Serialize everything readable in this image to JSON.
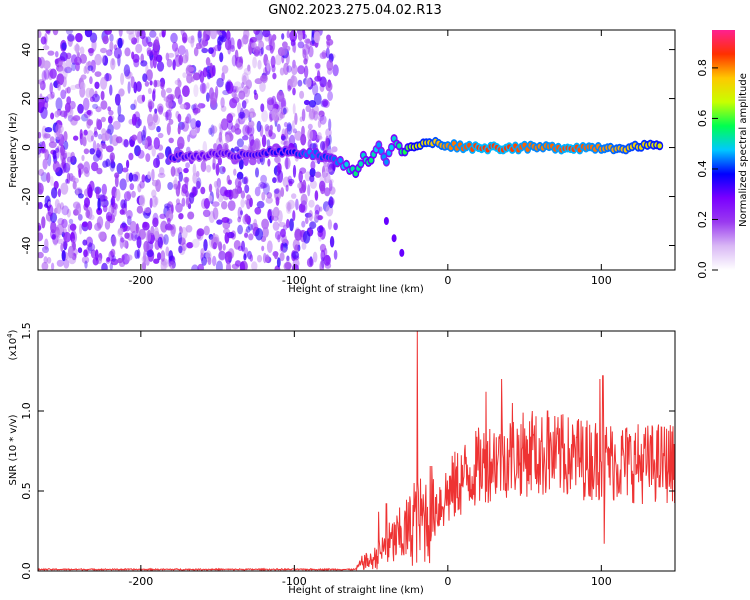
{
  "title": "GN02.2023.275.04.02.R13",
  "chart_data": [
    {
      "type": "heatmap",
      "xlabel": "Height of straight line (km)",
      "ylabel": "Frequency (Hz)",
      "xlim": [
        -267,
        148
      ],
      "ylim": [
        -50,
        48
      ],
      "xticks": [
        -200,
        -100,
        0,
        100
      ],
      "xtick_labels": [
        "-200",
        "-100",
        "0",
        "100"
      ],
      "yticks": [
        -40,
        -20,
        0,
        20,
        40
      ],
      "ytick_labels": [
        "-40",
        "-20",
        "0",
        "20",
        "40"
      ],
      "colorbar": {
        "label": "Normalized spectral amplitude",
        "range": [
          0,
          0.95
        ],
        "ticks": [
          0.0,
          0.2,
          0.4,
          0.6,
          0.8
        ],
        "tick_labels": [
          "0.0",
          "0.2",
          "0.4",
          "0.6",
          "0.8"
        ],
        "colors": [
          "#ffffff",
          "#d9b8f5",
          "#9a3af0",
          "#7a00ff",
          "#0000ff",
          "#00c8ff",
          "#00ff50",
          "#c8ff00",
          "#ffc800",
          "#ff3000",
          "#ff2090"
        ]
      },
      "noise_region": {
        "x_range": [
          -267,
          -73
        ],
        "amplitude": [
          0.1,
          0.35
        ]
      },
      "ridge": [
        {
          "x": -180,
          "y": -4,
          "z": 0.35
        },
        {
          "x": -160,
          "y": -3,
          "z": 0.3
        },
        {
          "x": -140,
          "y": -3,
          "z": 0.32
        },
        {
          "x": -120,
          "y": -2,
          "z": 0.35
        },
        {
          "x": -100,
          "y": -2,
          "z": 0.38
        },
        {
          "x": -90,
          "y": -2,
          "z": 0.45
        },
        {
          "x": -80,
          "y": -4,
          "z": 0.4
        },
        {
          "x": -70,
          "y": -6,
          "z": 0.45
        },
        {
          "x": -60,
          "y": -10,
          "z": 0.55
        },
        {
          "x": -55,
          "y": -4,
          "z": 0.5
        },
        {
          "x": -50,
          "y": -6,
          "z": 0.55
        },
        {
          "x": -45,
          "y": 2,
          "z": 0.45
        },
        {
          "x": -40,
          "y": -6,
          "z": 0.45
        },
        {
          "x": -35,
          "y": 4,
          "z": 0.5
        },
        {
          "x": -30,
          "y": -2,
          "z": 0.55
        },
        {
          "x": -20,
          "y": 1,
          "z": 0.7
        },
        {
          "x": -10,
          "y": 2,
          "z": 0.75
        },
        {
          "x": 0,
          "y": 1,
          "z": 0.8
        },
        {
          "x": 20,
          "y": 0,
          "z": 0.85
        },
        {
          "x": 40,
          "y": 0,
          "z": 0.85
        },
        {
          "x": 60,
          "y": 0,
          "z": 0.8
        },
        {
          "x": 80,
          "y": 0,
          "z": 0.85
        },
        {
          "x": 100,
          "y": 0,
          "z": 0.8
        },
        {
          "x": 120,
          "y": 0,
          "z": 0.75
        },
        {
          "x": 140,
          "y": 1,
          "z": 0.7
        }
      ],
      "tail": [
        {
          "x": -40,
          "y": -30
        },
        {
          "x": -35,
          "y": -37
        },
        {
          "x": -30,
          "y": -43
        }
      ]
    },
    {
      "type": "line",
      "xlabel": "Height of straight line (km)",
      "ylabel": "SNR (10 * v/v)",
      "scale_note": "(x10",
      "scale_exponent": "4",
      "scale_close": ")",
      "xlim": [
        -267,
        148
      ],
      "ylim": [
        0,
        1.5
      ],
      "xticks": [
        -200,
        -100,
        0,
        100
      ],
      "xtick_labels": [
        "-200",
        "-100",
        "0",
        "100"
      ],
      "yticks": [
        0,
        0.5,
        1.0,
        1.5
      ],
      "ytick_labels": [
        "0.0",
        "0.5",
        "1.0",
        "1.5"
      ],
      "color": "#ee3333",
      "series": [
        {
          "values_note": "SNR envelope (x10^4); noisy trace drawn around these values",
          "envelope": [
            {
              "x": -267,
              "y": 0.01
            },
            {
              "x": -60,
              "y": 0.01
            },
            {
              "x": -55,
              "y": 0.06
            },
            {
              "x": -50,
              "y": 0.06
            },
            {
              "x": -40,
              "y": 0.15
            },
            {
              "x": -30,
              "y": 0.22
            },
            {
              "x": -20,
              "y": 0.3
            },
            {
              "x": -10,
              "y": 0.38
            },
            {
              "x": 0,
              "y": 0.48
            },
            {
              "x": 10,
              "y": 0.58
            },
            {
              "x": 20,
              "y": 0.65
            },
            {
              "x": 30,
              "y": 0.7
            },
            {
              "x": 40,
              "y": 0.72
            },
            {
              "x": 50,
              "y": 0.73
            },
            {
              "x": 60,
              "y": 0.72
            },
            {
              "x": 70,
              "y": 0.72
            },
            {
              "x": 80,
              "y": 0.71
            },
            {
              "x": 90,
              "y": 0.7
            },
            {
              "x": 100,
              "y": 0.7
            },
            {
              "x": 110,
              "y": 0.68
            },
            {
              "x": 120,
              "y": 0.68
            },
            {
              "x": 130,
              "y": 0.67
            },
            {
              "x": 140,
              "y": 0.68
            },
            {
              "x": 148,
              "y": 0.67
            }
          ],
          "spikes": [
            {
              "x": -20,
              "y": 1.5
            },
            {
              "x": -22,
              "y": 0.55
            },
            {
              "x": -40,
              "y": 0.42
            },
            {
              "x": -45,
              "y": 0.37
            },
            {
              "x": 25,
              "y": 1.12
            },
            {
              "x": 35,
              "y": 1.2
            },
            {
              "x": 42,
              "y": 1.05
            },
            {
              "x": 55,
              "y": 1.0
            },
            {
              "x": 65,
              "y": 1.0
            },
            {
              "x": 75,
              "y": 0.98
            },
            {
              "x": 85,
              "y": 0.95
            },
            {
              "x": 99,
              "y": 1.2
            },
            {
              "x": 101,
              "y": 1.22
            },
            {
              "x": 102,
              "y": 0.17
            }
          ]
        }
      ]
    }
  ]
}
